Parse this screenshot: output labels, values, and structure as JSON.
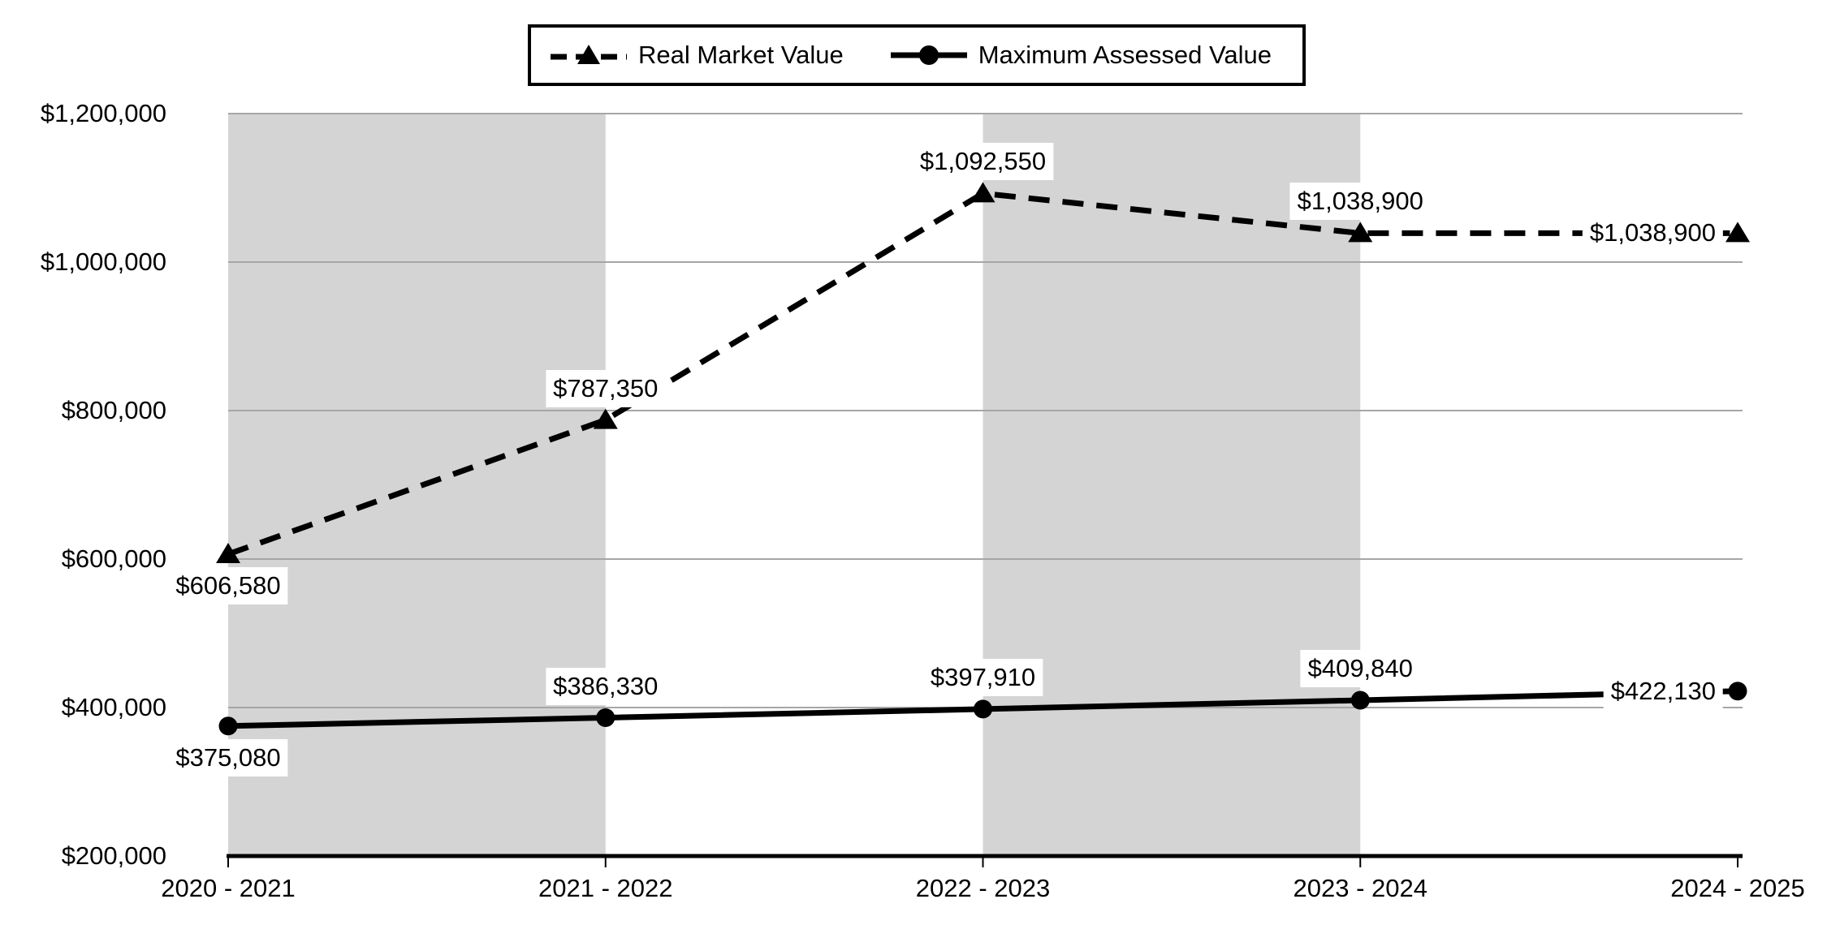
{
  "chart_data": {
    "type": "line",
    "title": "",
    "categories": [
      "2020 - 2021",
      "2021 - 2022",
      "2022 - 2023",
      "2023 - 2024",
      "2024 - 2025"
    ],
    "series": [
      {
        "name": "Real Market Value",
        "line_style": "dashed",
        "marker": "triangle",
        "color": "#000000",
        "values": [
          606580,
          787350,
          1092550,
          1038900,
          1038900
        ],
        "data_labels": [
          "$606,580",
          "$787,350",
          "$1,092,550",
          "$1,038,900",
          "$1,038,900"
        ],
        "label_positions": [
          "below",
          "above",
          "above",
          "above",
          "left"
        ]
      },
      {
        "name": "Maximum Assessed Value",
        "line_style": "solid",
        "marker": "circle",
        "color": "#000000",
        "values": [
          375080,
          386330,
          397910,
          409840,
          422130
        ],
        "data_labels": [
          "$375,080",
          "$386,330",
          "$397,910",
          "$409,840",
          "$422,130"
        ],
        "label_positions": [
          "below",
          "above",
          "above",
          "above",
          "left"
        ]
      }
    ],
    "y_axis": {
      "min": 200000,
      "max": 1200000,
      "step": 200000,
      "tick_labels": [
        "$200,000",
        "$400,000",
        "$600,000",
        "$800,000",
        "$1,000,000",
        "$1,200,000"
      ]
    },
    "x_axis": {
      "tick_labels": [
        "2020 - 2021",
        "2021 - 2022",
        "2022 - 2023",
        "2023 - 2024",
        "2024 - 2025"
      ]
    },
    "legend_position": "top",
    "grid": "horizontal",
    "gridline_color": "#a6a6a6",
    "axis_color": "#000000",
    "plot_band_color": "#d4d4d4",
    "plot_band_intervals": [
      0,
      2
    ],
    "label_background": "#ffffff"
  }
}
